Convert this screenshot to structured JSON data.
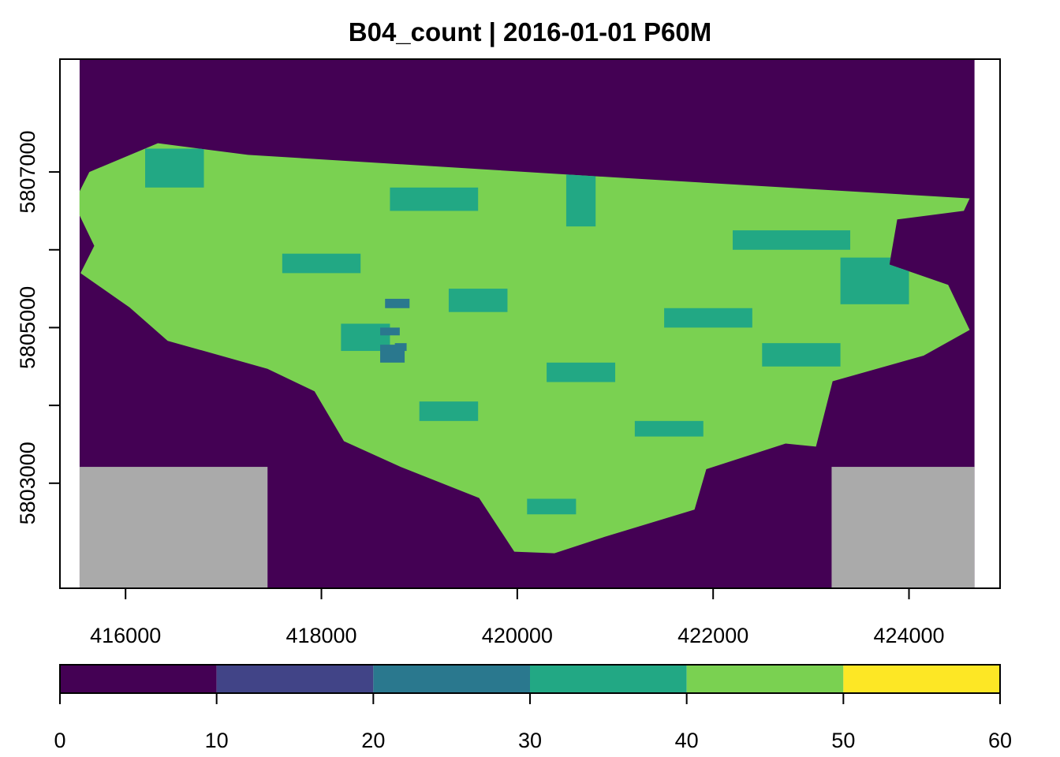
{
  "chart_data": {
    "type": "heatmap",
    "title": "B04_count | 2016-01-01 P60M",
    "xlabel": "",
    "ylabel": "",
    "xlim": [
      415330,
      424930
    ],
    "ylim": [
      5801650,
      5808450
    ],
    "raster_extent": {
      "x": [
        415530,
        424670
      ],
      "y": [
        5801650,
        5808450
      ]
    },
    "x_ticks": [
      {
        "value": 416000,
        "label": "416000"
      },
      {
        "value": 418000,
        "label": "418000"
      },
      {
        "value": 420000,
        "label": "420000"
      },
      {
        "value": 422000,
        "label": "422000"
      },
      {
        "value": 424000,
        "label": "424000"
      }
    ],
    "y_ticks": [
      {
        "value": 5803000,
        "label": "5803000"
      },
      {
        "value": 5804000,
        "label": ""
      },
      {
        "value": 5805000,
        "label": "5805000"
      },
      {
        "value": 5806000,
        "label": ""
      },
      {
        "value": 5807000,
        "label": "5807000"
      }
    ],
    "color_scale": {
      "breaks": [
        0,
        10,
        20,
        30,
        40,
        50,
        60
      ],
      "break_labels": [
        "0",
        "10",
        "20",
        "30",
        "40",
        "50",
        "60"
      ],
      "colors": [
        "#440154",
        "#414487",
        "#2A788E",
        "#22A884",
        "#7AD151",
        "#FDE725"
      ]
    },
    "na_color": "#AAAAAA",
    "regions": [
      {
        "name": "background",
        "value_range": [
          0,
          10
        ],
        "color": "#440154"
      },
      {
        "name": "aoi-valid-pixels",
        "value_range": [
          40,
          50
        ],
        "color": "#7AD151"
      },
      {
        "name": "aoi-lower-count-patches",
        "value_range": [
          30,
          40
        ],
        "color": "#22A884"
      },
      {
        "name": "aoi-low-count-patches",
        "value_range": [
          20,
          30
        ],
        "color": "#2A788E"
      },
      {
        "name": "no-data-corners",
        "value_range": null,
        "color": "#AAAAAA"
      }
    ],
    "aoi_outline": [
      [
        415630,
        5807000
      ],
      [
        416330,
        5807370
      ],
      [
        417250,
        5807220
      ],
      [
        421000,
        5806930
      ],
      [
        424620,
        5806660
      ],
      [
        424560,
        5806500
      ],
      [
        423880,
        5806390
      ],
      [
        423800,
        5805810
      ],
      [
        424400,
        5805550
      ],
      [
        424620,
        5804970
      ],
      [
        424150,
        5804640
      ],
      [
        423220,
        5804310
      ],
      [
        423050,
        5803470
      ],
      [
        422740,
        5803510
      ],
      [
        421930,
        5803180
      ],
      [
        421810,
        5802660
      ],
      [
        420890,
        5802310
      ],
      [
        420380,
        5802100
      ],
      [
        419970,
        5802120
      ],
      [
        419610,
        5802810
      ],
      [
        418810,
        5803210
      ],
      [
        418230,
        5803540
      ],
      [
        417930,
        5804180
      ],
      [
        417450,
        5804470
      ],
      [
        416430,
        5804830
      ],
      [
        416040,
        5805260
      ],
      [
        415540,
        5805700
      ],
      [
        415680,
        5806050
      ],
      [
        415470,
        5806600
      ]
    ],
    "lower_count_patches": [
      [
        416200,
        5806800,
        600,
        500
      ],
      [
        418700,
        5806500,
        900,
        300
      ],
      [
        420500,
        5806300,
        300,
        900
      ],
      [
        422200,
        5806000,
        1200,
        250
      ],
      [
        423300,
        5805300,
        700,
        600
      ],
      [
        417600,
        5805700,
        800,
        250
      ],
      [
        419300,
        5805200,
        600,
        300
      ],
      [
        421500,
        5805000,
        900,
        250
      ],
      [
        418200,
        5804700,
        500,
        350
      ],
      [
        420300,
        5804300,
        700,
        250
      ],
      [
        422500,
        5804500,
        800,
        300
      ],
      [
        419000,
        5803800,
        600,
        250
      ],
      [
        421200,
        5803600,
        700,
        200
      ],
      [
        420100,
        5802600,
        500,
        200
      ]
    ],
    "low_count_patches": [
      [
        418650,
        5805250,
        250,
        120
      ],
      [
        418600,
        5804900,
        200,
        100
      ],
      [
        418750,
        5804700,
        120,
        100
      ],
      [
        418600,
        5804550,
        250,
        230
      ]
    ],
    "na_blocks": [
      [
        415530,
        5801650,
        1920,
        1560
      ],
      [
        423210,
        5801650,
        1460,
        1560
      ]
    ]
  }
}
